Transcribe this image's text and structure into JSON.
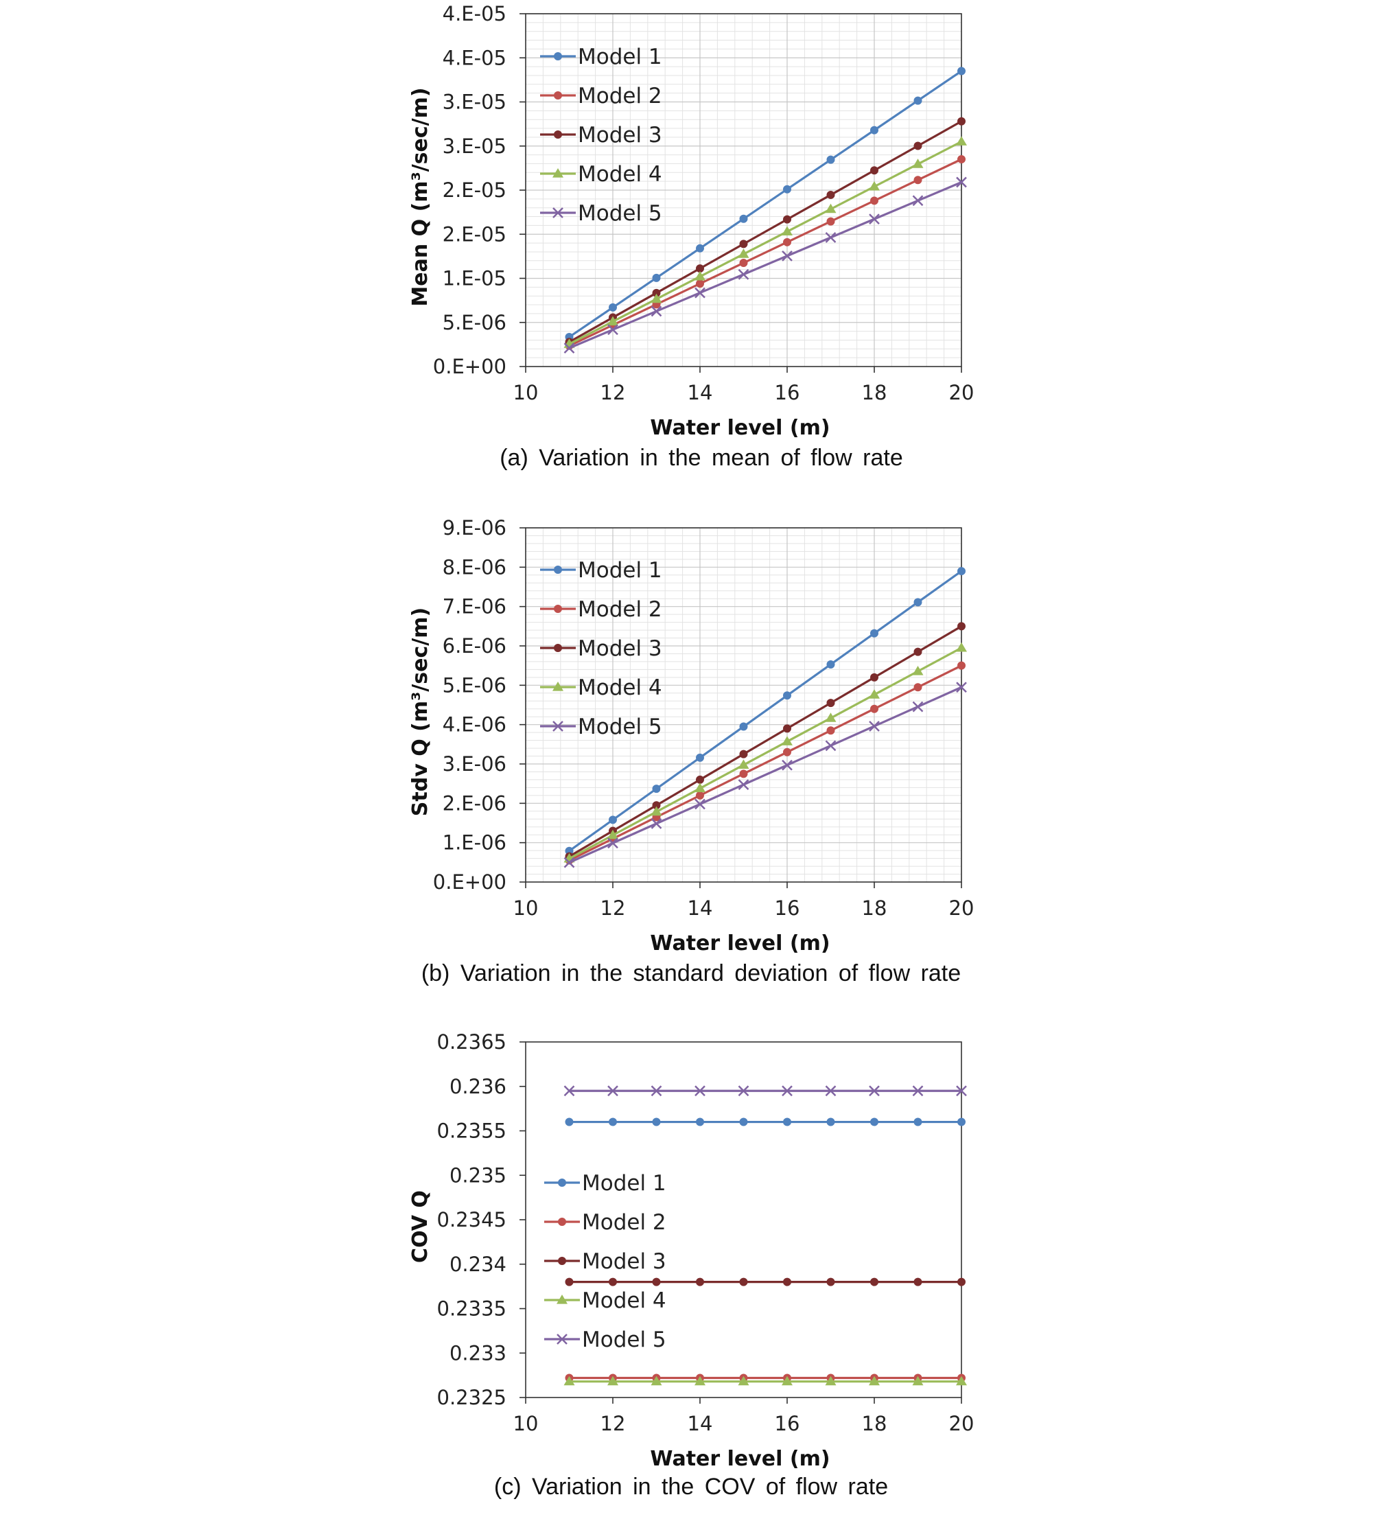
{
  "chart_data": [
    {
      "id": "a",
      "type": "line",
      "caption": "(a) Variation in the mean of flow rate",
      "xlabel": "Water level (m)",
      "ylabel": "Mean Q (m³/sec/m)",
      "xlim": [
        10,
        20
      ],
      "ylim": [
        0,
        4e-05
      ],
      "x_ticks": [
        "10",
        "12",
        "14",
        "16",
        "18",
        "20"
      ],
      "y_ticks": [
        "0.E+00",
        "5.E-06",
        "1.E-05",
        "2.E-05",
        "2.E-05",
        "3.E-05",
        "3.E-05",
        "4.E-05",
        "4.E-05"
      ],
      "grid": true,
      "legend_position": "top-left",
      "x": [
        11,
        12,
        13,
        14,
        15,
        16,
        17,
        18,
        19,
        20
      ],
      "series": [
        {
          "name": "Model 1",
          "color": "#4F81BD",
          "marker": "circle",
          "values": [
            3.35e-06,
            6.7e-06,
            1.005e-05,
            1.34e-05,
            1.675e-05,
            2.01e-05,
            2.345e-05,
            2.68e-05,
            3.015e-05,
            3.35e-05
          ]
        },
        {
          "name": "Model 2",
          "color": "#C0504D",
          "marker": "circle",
          "values": [
            2.35e-06,
            4.7e-06,
            7.05e-06,
            9.4e-06,
            1.175e-05,
            1.41e-05,
            1.645e-05,
            1.88e-05,
            2.115e-05,
            2.35e-05
          ]
        },
        {
          "name": "Model 3",
          "color": "#7B2C2C",
          "marker": "circle",
          "values": [
            2.78e-06,
            5.56e-06,
            8.34e-06,
            1.112e-05,
            1.39e-05,
            1.668e-05,
            1.946e-05,
            2.224e-05,
            2.502e-05,
            2.78e-05
          ]
        },
        {
          "name": "Model 4",
          "color": "#9BBB59",
          "marker": "triangle",
          "values": [
            2.55e-06,
            5.1e-06,
            7.65e-06,
            1.02e-05,
            1.275e-05,
            1.53e-05,
            1.785e-05,
            2.04e-05,
            2.295e-05,
            2.55e-05
          ]
        },
        {
          "name": "Model 5",
          "color": "#8064A2",
          "marker": "x",
          "values": [
            2.09e-06,
            4.18e-06,
            6.27e-06,
            8.36e-06,
            1.045e-05,
            1.254e-05,
            1.463e-05,
            1.672e-05,
            1.881e-05,
            2.09e-05
          ]
        }
      ]
    },
    {
      "id": "b",
      "type": "line",
      "caption": "(b) Variation in the standard deviation of flow rate",
      "xlabel": "Water level (m)",
      "ylabel": "Stdv Q (m³/sec/m)",
      "xlim": [
        10,
        20
      ],
      "ylim": [
        0,
        9e-06
      ],
      "x_ticks": [
        "10",
        "12",
        "14",
        "16",
        "18",
        "20"
      ],
      "y_ticks": [
        "0.E+00",
        "1.E-06",
        "2.E-06",
        "3.E-06",
        "4.E-06",
        "5.E-06",
        "6.E-06",
        "7.E-06",
        "8.E-06",
        "9.E-06"
      ],
      "grid": true,
      "legend_position": "top-left",
      "x": [
        11,
        12,
        13,
        14,
        15,
        16,
        17,
        18,
        19,
        20
      ],
      "series": [
        {
          "name": "Model 1",
          "color": "#4F81BD",
          "marker": "circle",
          "values": [
            7.9e-07,
            1.58e-06,
            2.37e-06,
            3.16e-06,
            3.95e-06,
            4.74e-06,
            5.53e-06,
            6.32e-06,
            7.11e-06,
            7.9e-06
          ]
        },
        {
          "name": "Model 2",
          "color": "#C0504D",
          "marker": "circle",
          "values": [
            5.5e-07,
            1.1e-06,
            1.65e-06,
            2.2e-06,
            2.75e-06,
            3.3e-06,
            3.85e-06,
            4.4e-06,
            4.95e-06,
            5.5e-06
          ]
        },
        {
          "name": "Model 3",
          "color": "#7B2C2C",
          "marker": "circle",
          "values": [
            6.5e-07,
            1.3e-06,
            1.95e-06,
            2.6e-06,
            3.25e-06,
            3.9e-06,
            4.55e-06,
            5.2e-06,
            5.85e-06,
            6.5e-06
          ]
        },
        {
          "name": "Model 4",
          "color": "#9BBB59",
          "marker": "triangle",
          "values": [
            5.95e-07,
            1.19e-06,
            1.785e-06,
            2.38e-06,
            2.975e-06,
            3.57e-06,
            4.165e-06,
            4.76e-06,
            5.355e-06,
            5.95e-06
          ]
        },
        {
          "name": "Model 5",
          "color": "#8064A2",
          "marker": "x",
          "values": [
            4.95e-07,
            9.9e-07,
            1.485e-06,
            1.98e-06,
            2.475e-06,
            2.97e-06,
            3.465e-06,
            3.96e-06,
            4.455e-06,
            4.95e-06
          ]
        }
      ]
    },
    {
      "id": "c",
      "type": "line",
      "caption": "(c) Variation in the COV of flow rate",
      "xlabel": "Water level (m)",
      "ylabel": "COV Q",
      "xlim": [
        10,
        20
      ],
      "ylim": [
        0.2325,
        0.2365
      ],
      "x_ticks": [
        "10",
        "12",
        "14",
        "16",
        "18",
        "20"
      ],
      "y_ticks": [
        "0.2325",
        "0.233",
        "0.2335",
        "0.234",
        "0.2345",
        "0.235",
        "0.2355",
        "0.236",
        "0.2365"
      ],
      "grid": false,
      "legend_position": "left",
      "x": [
        11,
        12,
        13,
        14,
        15,
        16,
        17,
        18,
        19,
        20
      ],
      "series": [
        {
          "name": "Model 1",
          "color": "#4F81BD",
          "marker": "circle",
          "values": [
            0.2356,
            0.2356,
            0.2356,
            0.2356,
            0.2356,
            0.2356,
            0.2356,
            0.2356,
            0.2356,
            0.2356
          ]
        },
        {
          "name": "Model 2",
          "color": "#C0504D",
          "marker": "circle",
          "values": [
            0.23272,
            0.23272,
            0.23272,
            0.23272,
            0.23272,
            0.23272,
            0.23272,
            0.23272,
            0.23272,
            0.23272
          ]
        },
        {
          "name": "Model 3",
          "color": "#7B2C2C",
          "marker": "circle",
          "values": [
            0.2338,
            0.2338,
            0.2338,
            0.2338,
            0.2338,
            0.2338,
            0.2338,
            0.2338,
            0.2338,
            0.2338
          ]
        },
        {
          "name": "Model 4",
          "color": "#9BBB59",
          "marker": "triangle",
          "values": [
            0.23268,
            0.23268,
            0.23268,
            0.23268,
            0.23268,
            0.23268,
            0.23268,
            0.23268,
            0.23268,
            0.23268
          ]
        },
        {
          "name": "Model 5",
          "color": "#8064A2",
          "marker": "x",
          "values": [
            0.23595,
            0.23595,
            0.23595,
            0.23595,
            0.23595,
            0.23595,
            0.23595,
            0.23595,
            0.23595,
            0.23595
          ]
        }
      ]
    }
  ]
}
